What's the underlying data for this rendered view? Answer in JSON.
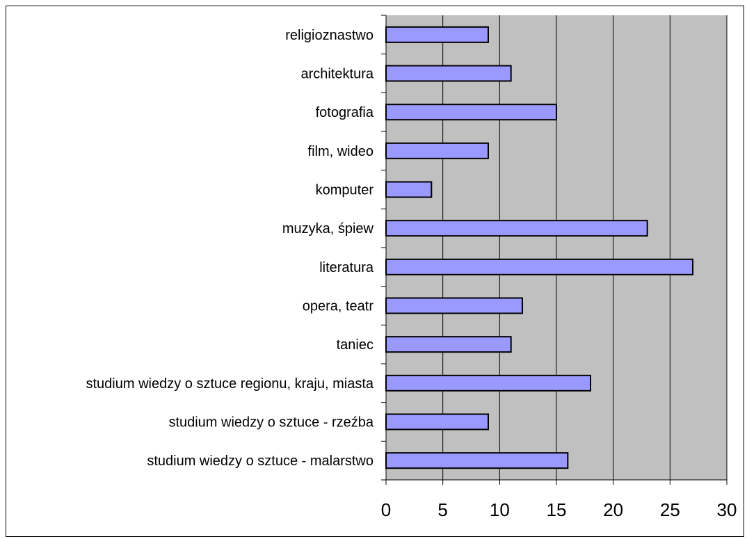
{
  "chart_data": {
    "type": "bar",
    "orientation": "horizontal",
    "categories": [
      "religioznastwo",
      "architektura",
      "fotografia",
      "film, wideo",
      "komputer",
      "muzyka, śpiew",
      "literatura",
      "opera, teatr",
      "taniec",
      "studium wiedzy o sztuce regionu, kraju, miasta",
      "studium wiedzy o sztuce - rzeźba",
      "studium wiedzy o sztuce - malarstwo"
    ],
    "values": [
      9,
      11,
      15,
      9,
      4,
      23,
      27,
      12,
      11,
      18,
      9,
      16
    ],
    "xlim": [
      0,
      30
    ],
    "xticks": [
      "0",
      "5",
      "10",
      "15",
      "20",
      "25",
      "30"
    ],
    "title": "",
    "xlabel": "",
    "ylabel": "",
    "grid": "vertical",
    "legend": "none",
    "colors": {
      "plot_background": "#c0c0c0",
      "bar_fill": "#9999ff",
      "bar_stroke": "#000000",
      "grid": "#000000"
    }
  }
}
